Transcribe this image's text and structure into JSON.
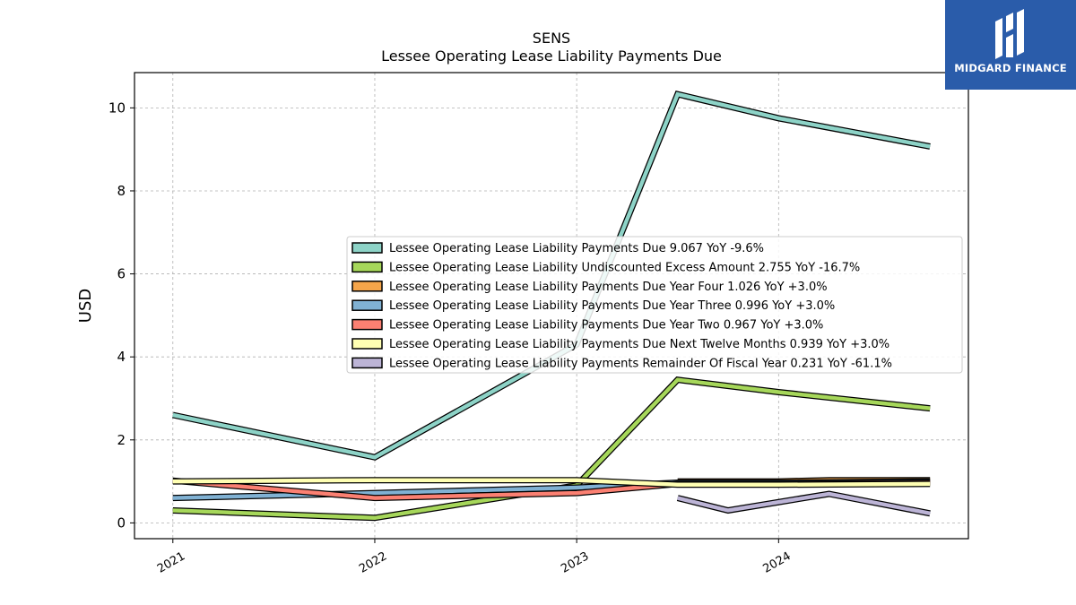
{
  "logo": {
    "text": "MIDGARD FINANCE",
    "background": "#2a5caa",
    "icon": "midgard-logo-icon"
  },
  "chart_data": {
    "type": "line",
    "title": "SENS",
    "subtitle": "Lessee Operating Lease Liability Payments Due",
    "xlabel": "",
    "ylabel": "USD",
    "xlim": [
      2020.81,
      2024.94
    ],
    "ylim": [
      -0.38,
      10.85
    ],
    "x_ticks": [
      {
        "value": 2021,
        "label": "2021"
      },
      {
        "value": 2022,
        "label": "2022"
      },
      {
        "value": 2023,
        "label": "2023"
      },
      {
        "value": 2024,
        "label": "2024"
      }
    ],
    "y_ticks": [
      {
        "value": 0,
        "label": "0"
      },
      {
        "value": 2,
        "label": "2"
      },
      {
        "value": 4,
        "label": "4"
      },
      {
        "value": 6,
        "label": "6"
      },
      {
        "value": 8,
        "label": "8"
      },
      {
        "value": 10,
        "label": "10"
      }
    ],
    "grid": true,
    "legend_position": "center-right",
    "series": [
      {
        "name": "Lessee Operating Lease Liability Payments Due  9.067 YoY -9.6%",
        "color": "#8dd3c7",
        "points": [
          [
            2021,
            2.6
          ],
          [
            2022,
            1.58
          ],
          [
            2023,
            4.3
          ],
          [
            2023.5,
            10.33
          ],
          [
            2024,
            9.75
          ],
          [
            2024.75,
            9.07
          ]
        ]
      },
      {
        "name": "Lessee Operating Lease Liability Undiscounted Excess Amount  2.755 YoY -16.7%",
        "color": "#a6d75a",
        "points": [
          [
            2021,
            0.3
          ],
          [
            2022,
            0.12
          ],
          [
            2023,
            0.9
          ],
          [
            2023.5,
            3.45
          ],
          [
            2024,
            3.15
          ],
          [
            2024.75,
            2.76
          ]
        ]
      },
      {
        "name": "Lessee Operating Lease Liability Payments Due Year Four  1.026 YoY +3.0%",
        "color": "#f5a54a",
        "points": [
          [
            2023.5,
            1.0
          ],
          [
            2024,
            1.0
          ],
          [
            2024.25,
            1.03
          ],
          [
            2024.75,
            1.03
          ]
        ]
      },
      {
        "name": "Lessee Operating Lease Liability Payments Due Year Three  0.996 YoY +3.0%",
        "color": "#80b1d3",
        "points": [
          [
            2021,
            0.6
          ],
          [
            2022,
            0.72
          ],
          [
            2023,
            0.85
          ],
          [
            2023.5,
            0.97
          ],
          [
            2024,
            0.97
          ],
          [
            2024.75,
            1.0
          ]
        ]
      },
      {
        "name": "Lessee Operating Lease Liability Payments Due Year Two  0.967 YoY +3.0%",
        "color": "#fb8072",
        "points": [
          [
            2021,
            1.02
          ],
          [
            2022,
            0.6
          ],
          [
            2023,
            0.72
          ],
          [
            2023.5,
            0.94
          ],
          [
            2024,
            0.94
          ],
          [
            2024.75,
            0.97
          ]
        ]
      },
      {
        "name": "Lessee Operating Lease Liability Payments Due Next Twelve Months  0.939 YoY +3.0%",
        "color": "#ffffb3",
        "points": [
          [
            2021,
            1.0
          ],
          [
            2022,
            1.03
          ],
          [
            2023,
            1.03
          ],
          [
            2023.5,
            0.92
          ],
          [
            2024,
            0.92
          ],
          [
            2024.75,
            0.94
          ]
        ]
      },
      {
        "name": "Lessee Operating Lease Liability Payments Remainder Of Fiscal Year  0.231 YoY -61.1%",
        "color": "#bcb4d6",
        "points": [
          [
            2023.5,
            0.6
          ],
          [
            2023.75,
            0.3
          ],
          [
            2024.25,
            0.7
          ],
          [
            2024.75,
            0.23
          ]
        ]
      }
    ]
  }
}
